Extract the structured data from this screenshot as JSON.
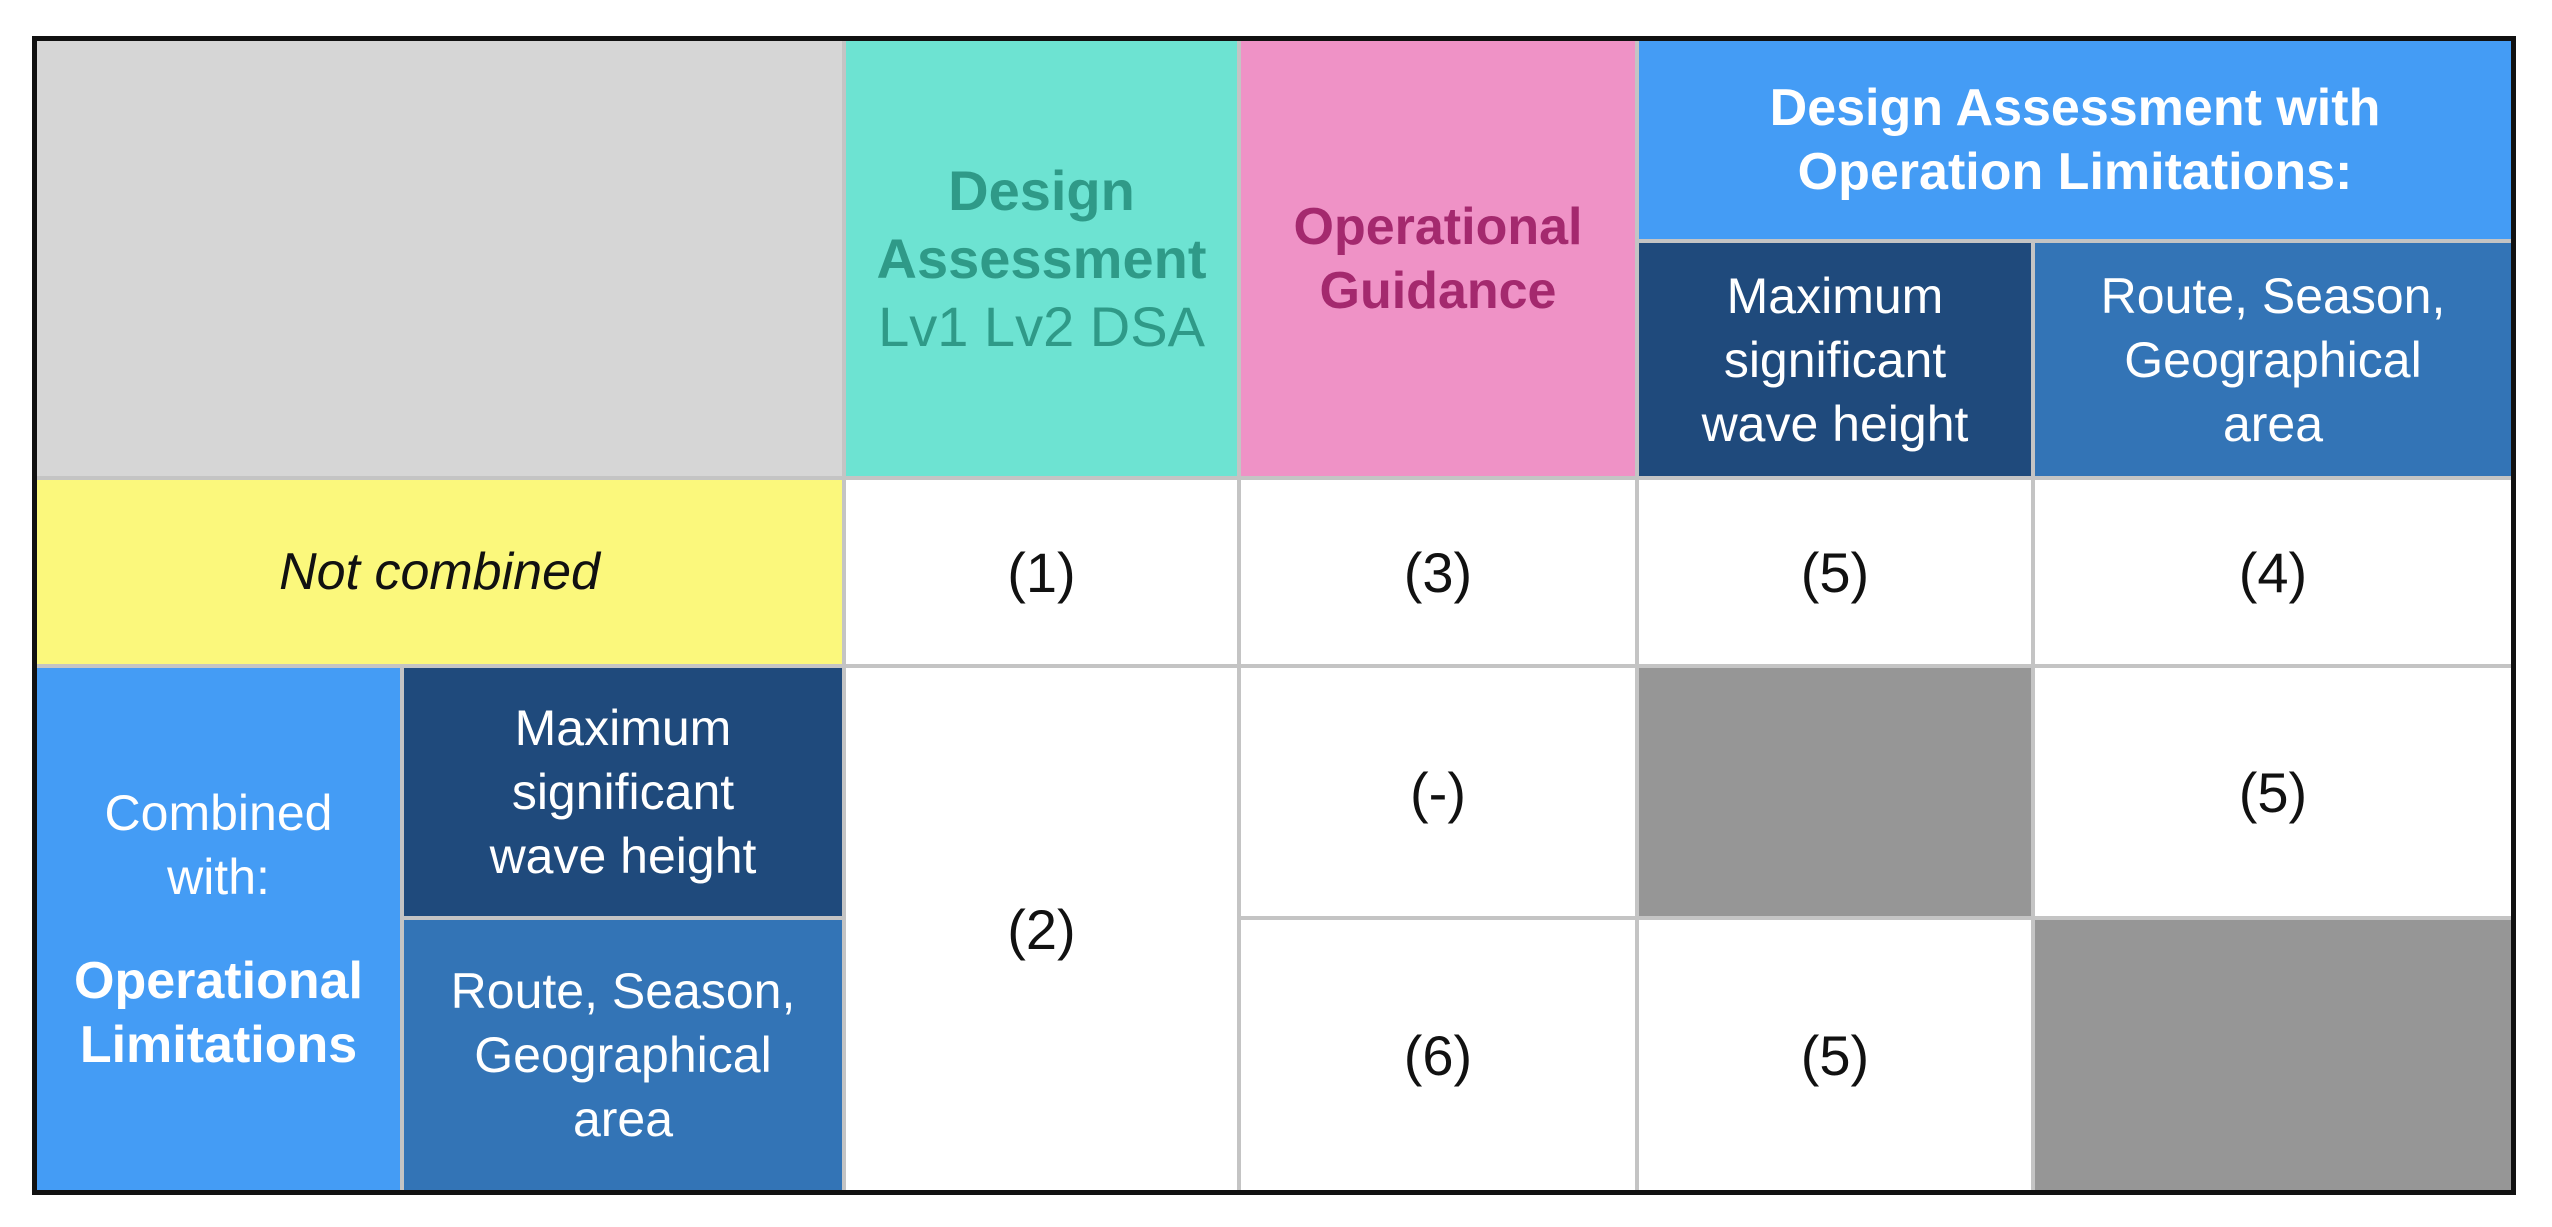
{
  "colors": {
    "corner_gray": "#d6d6d6",
    "teal": "#6de3d2",
    "teal_text": "#2f9a88",
    "pink": "#ef92c6",
    "pink_text": "#a4296e",
    "light_blue": "#449cf5",
    "dark_navy": "#1f4a7c",
    "mid_blue": "#3374b6",
    "yellow": "#fbf87c",
    "empty_gray": "#969696",
    "grid_line": "#c4c4c4"
  },
  "header": {
    "design_assessment": {
      "title_line1": "Design",
      "title_line2": "Assessment",
      "subtitle": "Lv1 Lv2 DSA"
    },
    "operational_guidance": {
      "line1": "Operational",
      "line2": "Guidance"
    },
    "design_with_limits": {
      "title_line1": "Design Assessment with",
      "title_line2": "Operation Limitations:",
      "sub_wave": {
        "line1": "Maximum",
        "line2": "significant",
        "line3": "wave height"
      },
      "sub_route": {
        "line1": "Route, Season,",
        "line2": "Geographical",
        "line3": "area"
      }
    }
  },
  "rows": {
    "not_combined": {
      "label": "Not combined",
      "values": [
        "(1)",
        "(3)",
        "(5)",
        "(4)"
      ]
    },
    "combined": {
      "label_line1": "Combined",
      "label_line2": "with:",
      "label_bold_line1": "Operational",
      "label_bold_line2": "Limitations",
      "design_value": "(2)",
      "wave": {
        "label_line1": "Maximum",
        "label_line2": "significant",
        "label_line3": "wave height",
        "guidance": "(-)",
        "route_col": "(5)"
      },
      "route": {
        "label_line1": "Route, Season,",
        "label_line2": "Geographical",
        "label_line3": "area",
        "guidance": "(6)",
        "wave_col": "(5)"
      }
    }
  }
}
